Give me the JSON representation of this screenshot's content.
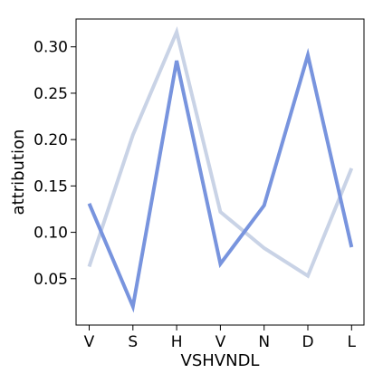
{
  "chart_data": {
    "type": "line",
    "categories": [
      "V",
      "S",
      "H",
      "V",
      "N",
      "D",
      "L"
    ],
    "xlabel": "VSHVNDL",
    "ylabel": "attribution",
    "ylim": [
      0.0,
      0.33
    ],
    "yticks": [
      0.05,
      0.1,
      0.15,
      0.2,
      0.25,
      0.3
    ],
    "ytick_labels": [
      "0.05",
      "0.10",
      "0.15",
      "0.20",
      "0.25",
      "0.30"
    ],
    "grid": false,
    "series": [
      {
        "color": "#c9d3e6",
        "values": [
          0.063,
          0.205,
          0.316,
          0.122,
          0.083,
          0.053,
          0.169
        ]
      },
      {
        "color": "#7894de",
        "values": [
          0.131,
          0.02,
          0.285,
          0.066,
          0.129,
          0.291,
          0.084
        ]
      }
    ]
  }
}
